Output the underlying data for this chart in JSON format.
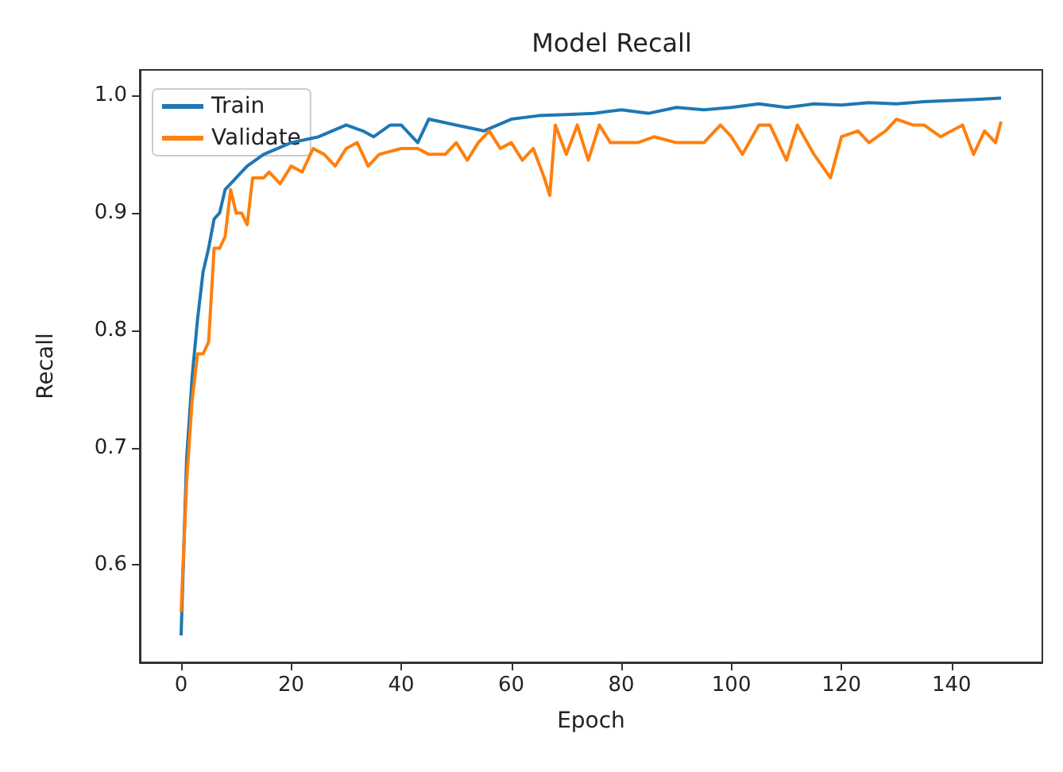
{
  "chart_data": {
    "type": "line",
    "title": "Model Recall",
    "xlabel": "Epoch",
    "ylabel": "Recall",
    "xlim": [
      -7.5,
      156.5
    ],
    "xticks": [
      0,
      20,
      40,
      60,
      80,
      100,
      120,
      140
    ],
    "ylim": [
      0.517,
      1.022
    ],
    "yticks": [
      0.6,
      0.7,
      0.8,
      0.9,
      {
        "value": 1,
        "label": "1.0"
      }
    ],
    "grid": false,
    "legend": "top left",
    "series": [
      {
        "name": "Train",
        "color": "#1f77b4",
        "x": [
          0,
          1,
          2,
          3,
          4,
          5,
          6,
          7,
          8,
          9,
          10,
          12,
          15,
          20,
          25,
          30,
          33,
          35,
          38,
          40,
          43,
          45,
          50,
          55,
          60,
          65,
          70,
          75,
          80,
          85,
          90,
          95,
          100,
          105,
          110,
          115,
          120,
          125,
          130,
          135,
          140,
          145,
          149
        ],
        "values": [
          0.54,
          0.69,
          0.76,
          0.81,
          0.85,
          0.87,
          0.895,
          0.9,
          0.92,
          0.925,
          0.93,
          0.94,
          0.95,
          0.96,
          0.965,
          0.975,
          0.97,
          0.965,
          0.975,
          0.975,
          0.96,
          0.98,
          0.975,
          0.97,
          0.98,
          0.983,
          0.984,
          0.985,
          0.988,
          0.985,
          0.99,
          0.988,
          0.99,
          0.993,
          0.99,
          0.993,
          0.992,
          0.994,
          0.993,
          0.995,
          0.996,
          0.997,
          0.998
        ]
      },
      {
        "name": "Validate",
        "color": "#ff7f0e",
        "x": [
          0,
          1,
          2,
          3,
          4,
          5,
          6,
          7,
          8,
          9,
          10,
          11,
          12,
          13,
          15,
          16,
          18,
          20,
          22,
          24,
          26,
          28,
          30,
          32,
          34,
          36,
          40,
          43,
          45,
          48,
          50,
          52,
          54,
          56,
          58,
          60,
          62,
          64,
          66,
          67,
          68,
          70,
          72,
          74,
          76,
          78,
          80,
          83,
          86,
          90,
          95,
          98,
          100,
          102,
          105,
          107,
          110,
          112,
          115,
          118,
          120,
          123,
          125,
          128,
          130,
          133,
          135,
          138,
          140,
          142,
          144,
          146,
          148,
          149
        ],
        "values": [
          0.56,
          0.67,
          0.74,
          0.78,
          0.78,
          0.79,
          0.87,
          0.87,
          0.88,
          0.92,
          0.9,
          0.9,
          0.89,
          0.93,
          0.93,
          0.935,
          0.925,
          0.94,
          0.935,
          0.955,
          0.95,
          0.94,
          0.955,
          0.96,
          0.94,
          0.95,
          0.955,
          0.955,
          0.95,
          0.95,
          0.96,
          0.945,
          0.96,
          0.97,
          0.955,
          0.96,
          0.945,
          0.955,
          0.93,
          0.915,
          0.975,
          0.95,
          0.975,
          0.945,
          0.975,
          0.96,
          0.96,
          0.96,
          0.965,
          0.96,
          0.96,
          0.975,
          0.965,
          0.95,
          0.975,
          0.975,
          0.945,
          0.975,
          0.95,
          0.93,
          0.965,
          0.97,
          0.96,
          0.97,
          0.98,
          0.975,
          0.975,
          0.965,
          0.97,
          0.975,
          0.95,
          0.97,
          0.96,
          0.978
        ]
      }
    ]
  }
}
